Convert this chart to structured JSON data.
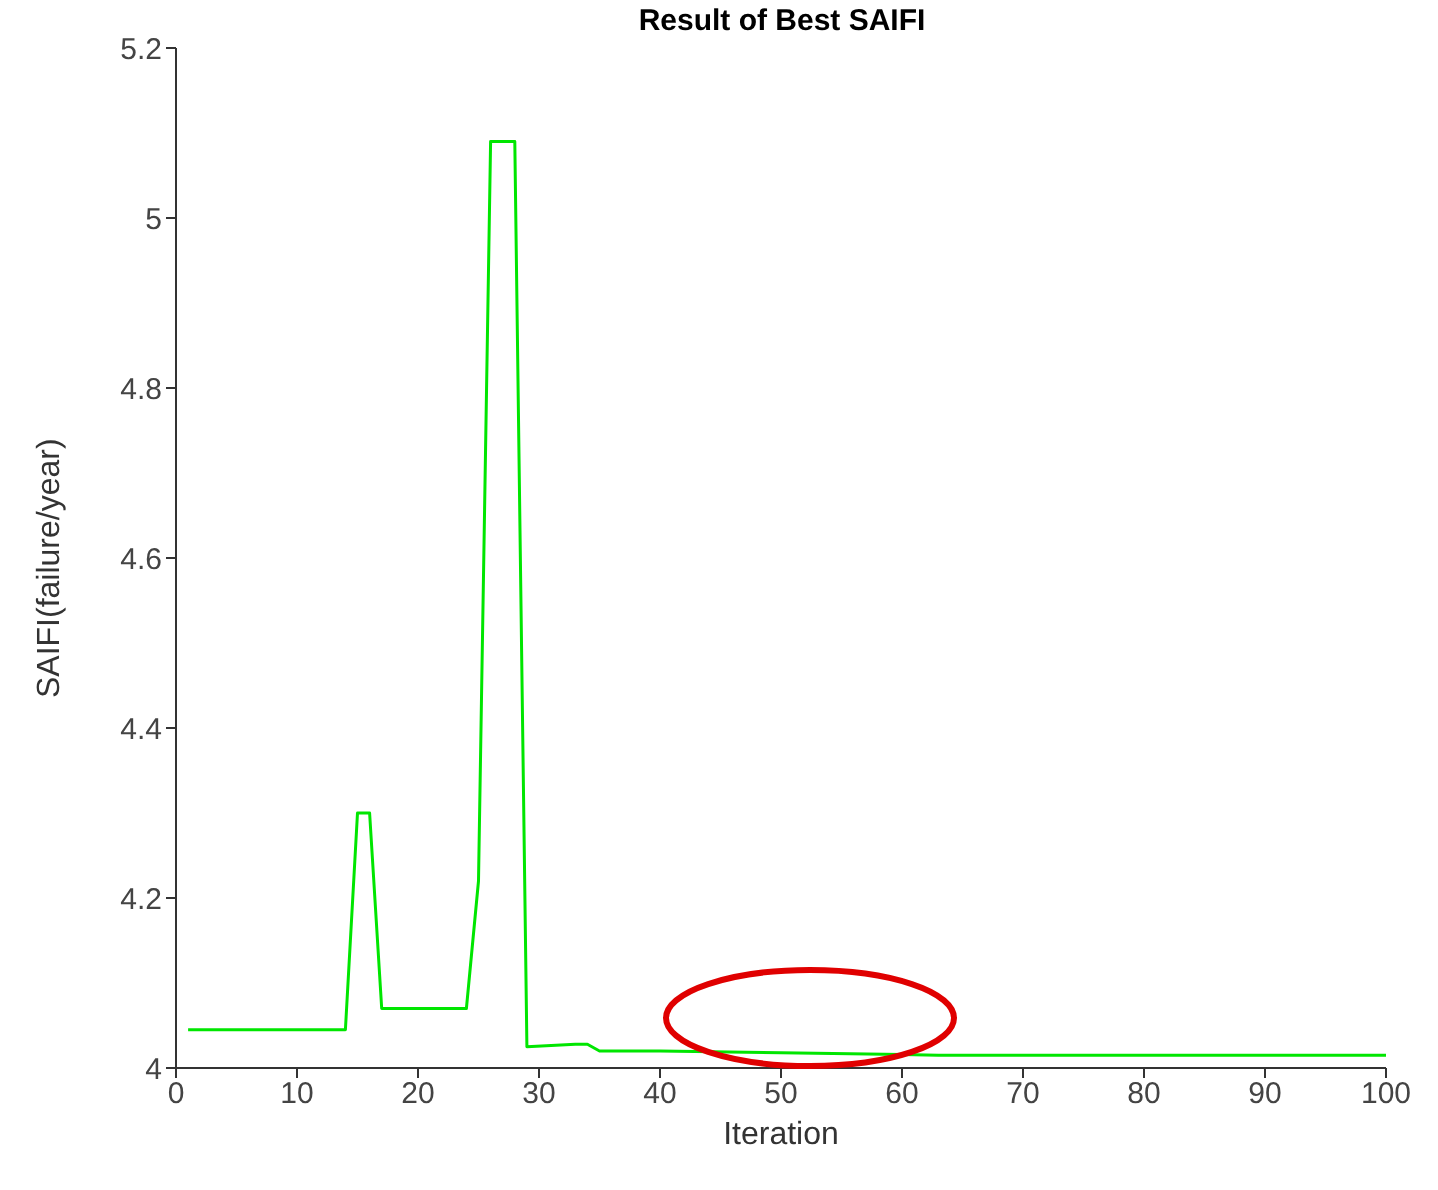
{
  "chart_data": {
    "type": "line",
    "title": "Result of Best SAIFI",
    "xlabel": "Iteration",
    "ylabel": "SAIFI(failure/year)",
    "x": [
      1,
      14,
      15,
      16,
      17,
      24,
      25,
      26,
      28,
      29,
      33,
      34,
      35,
      40,
      50,
      60,
      63,
      100
    ],
    "series": [
      {
        "color": "#00e600",
        "values": [
          4.045,
          4.045,
          4.3,
          4.3,
          4.07,
          4.07,
          4.22,
          5.09,
          5.09,
          4.025,
          4.028,
          4.028,
          4.02,
          4.02,
          4.018,
          4.016,
          4.015,
          4.015
        ]
      }
    ],
    "xlim": [
      0,
      100
    ],
    "xticks": [
      0,
      10,
      20,
      30,
      40,
      50,
      60,
      70,
      80,
      90,
      100
    ],
    "ylim": [
      4,
      5.2
    ],
    "yticks": [
      4,
      4.2,
      4.4,
      4.6,
      4.8,
      5,
      5.2
    ],
    "grid": false,
    "legend": false,
    "marker": "none",
    "line_style": "solid"
  }
}
